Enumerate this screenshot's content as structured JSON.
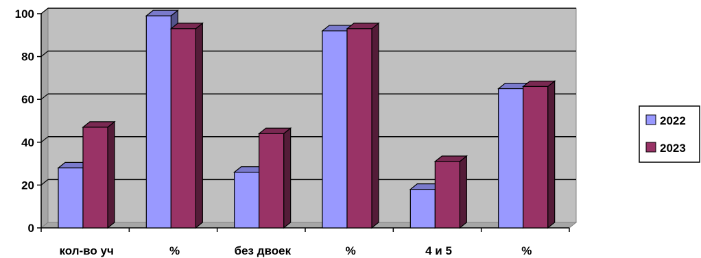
{
  "chart_data": {
    "type": "bar",
    "title": "",
    "xlabel": "",
    "ylabel": "",
    "categories": [
      "кол-во уч",
      "%",
      "без двоек",
      "%",
      "4 и 5",
      "%"
    ],
    "series": [
      {
        "name": "2022",
        "values": [
          28,
          99,
          26,
          92,
          18,
          65
        ],
        "color": "#9999ff"
      },
      {
        "name": "2023",
        "values": [
          47,
          93,
          44,
          93,
          31,
          66
        ],
        "color": "#993366"
      }
    ],
    "ylim": [
      0,
      100
    ],
    "yticks": [
      "0",
      "20",
      "40",
      "60",
      "80",
      "100"
    ],
    "grid": true,
    "legend": "right",
    "plot_background": "#c0c0c0",
    "style": "3d-clustered-column"
  }
}
